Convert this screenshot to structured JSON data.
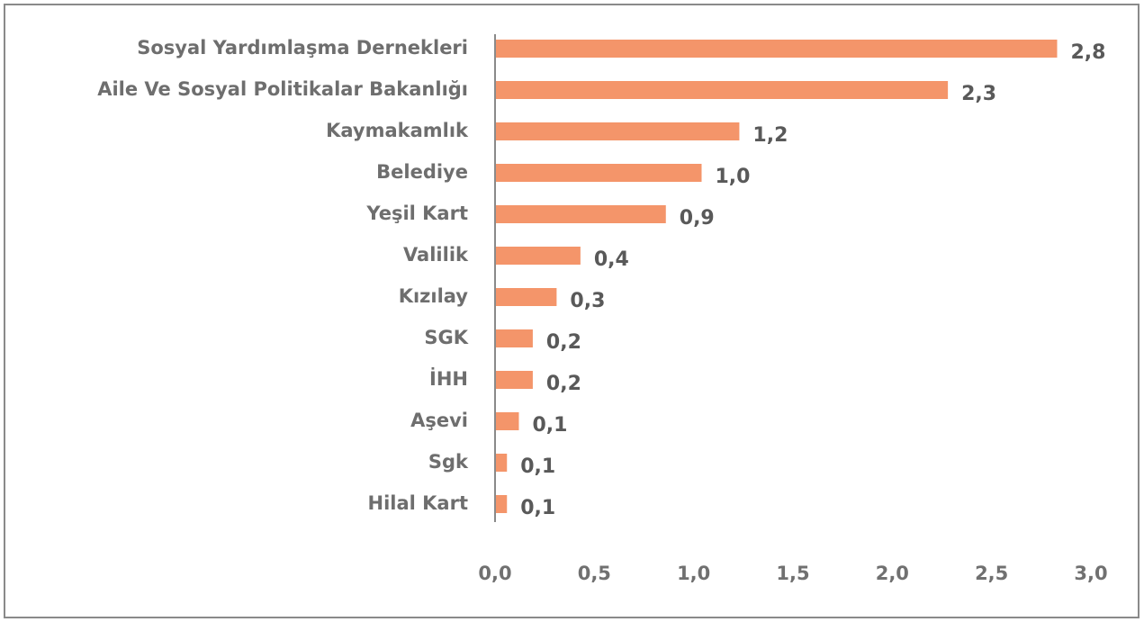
{
  "chart_data": {
    "type": "bar",
    "orientation": "horizontal",
    "categories": [
      "Sosyal Yardımlaşma Dernekleri",
      "Aile Ve Sosyal Politikalar Bakanlığı",
      "Kaymakamlık",
      "Belediye",
      "Yeşil Kart",
      "Valilik",
      "Kızılay",
      "SGK",
      "İHH",
      "Aşevi",
      "Sgk",
      "Hilal Kart"
    ],
    "values": [
      2.83,
      2.28,
      1.23,
      1.04,
      0.86,
      0.43,
      0.31,
      0.19,
      0.19,
      0.12,
      0.06,
      0.06
    ],
    "value_labels": [
      "2,8",
      "2,3",
      "1,2",
      "1,0",
      "0,9",
      "0,4",
      "0,3",
      "0,2",
      "0,2",
      "0,1",
      "0,1",
      "0,1"
    ],
    "color": "#f4956a",
    "xlim": [
      0,
      3
    ],
    "xticks": [
      {
        "value": 0,
        "label": "0,0"
      },
      {
        "value": 0.5,
        "label": "0,5"
      },
      {
        "value": 1,
        "label": "1,0"
      },
      {
        "value": 1.5,
        "label": "1,5"
      },
      {
        "value": 2,
        "label": "2,0"
      },
      {
        "value": 2.5,
        "label": "2,5"
      },
      {
        "value": 3,
        "label": "3,0"
      }
    ],
    "grid": false
  }
}
